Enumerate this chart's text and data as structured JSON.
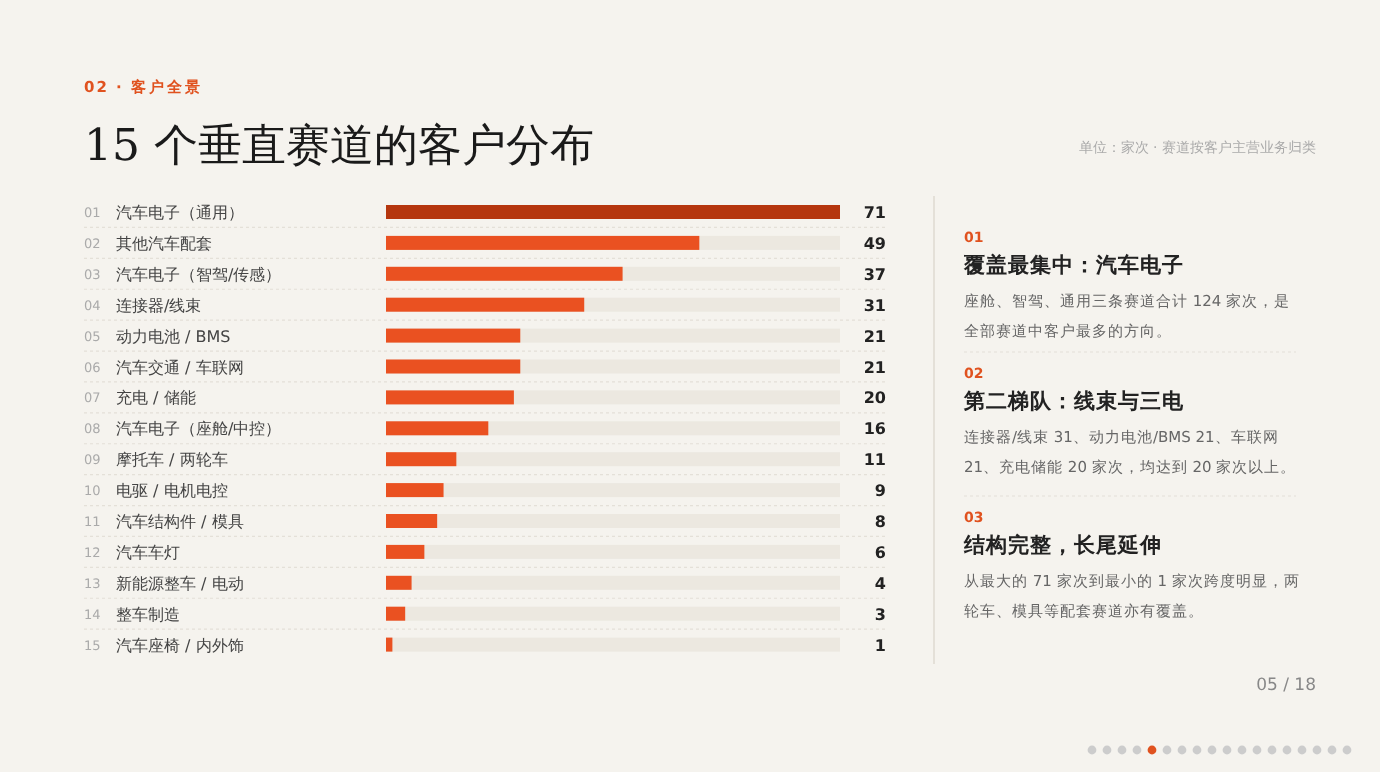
{
  "chart_data": [
    {
      "type": "bar",
      "orientation": "horizontal",
      "title": "15 个垂直赛道的客户分布",
      "subtitle": "02 · 客户全景",
      "categories": [
        "汽车电子（通用）",
        "其他汽车配套",
        "汽车电子（智驾/传感）",
        "连接器/线束",
        "动力电池 / BMS",
        "汽车交通 / 车联网",
        "充电 / 储能",
        "汽车电子（座舱/中控）",
        "摩托车 / 两轮车",
        "电驱 / 电机电控",
        "汽车结构件 / 模具",
        "汽车车灯",
        "新能源整车 / 电动",
        "整车制造",
        "汽车座椅 / 内外饰"
      ],
      "values": [
        71,
        49,
        37,
        31,
        21,
        21,
        20,
        16,
        11,
        9,
        8,
        6,
        4,
        3,
        1
      ],
      "colors": [
        "#b5360e",
        "#ea5121",
        "#ea5121",
        "#ea5121",
        "#ea5121",
        "#ea5121",
        "#ea5121",
        "#ea5121",
        "#ea5121",
        "#ea5121",
        "#ea5121",
        "#ea5121",
        "#ea5121",
        "#ea5121",
        "#ea5121"
      ],
      "data_labels": true,
      "annotations": [
        "单位：家次 · 赛道按客户主营业务归类",
        "05 / 18",
        "01",
        "02",
        "03",
        "04",
        "05",
        "06",
        "07",
        "08",
        "09",
        "10",
        "11",
        "12",
        "13",
        "14",
        "15"
      ]
    },
    {
      "type": "other",
      "annotations": [
        "01",
        "覆盖最集中：汽车电子",
        "座舱、智驾、通用三条赛道合计 124 家次，是全部赛道中客户最多的方向。",
        "02",
        "第二梯队：线束与三电",
        "连接器/线束 31、动力电池/BMS 21、车联网 21、充电储能 20 家次，均达到 20 家次以上。",
        "03",
        "结构完整，长尾延伸",
        "从最大的 71 家次到最小的 1 家次跨度明显，两轮车、模具等配套赛道亦有覆盖。"
      ]
    }
  ]
}
